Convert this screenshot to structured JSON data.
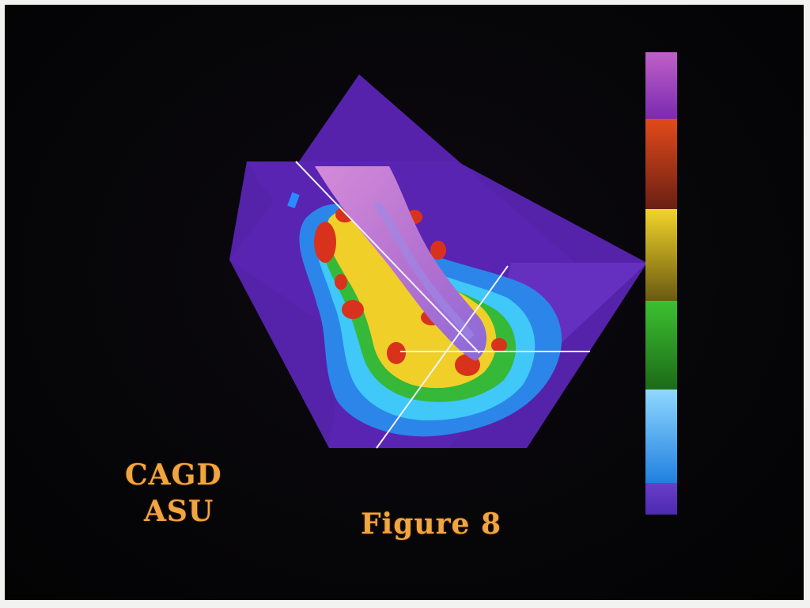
{
  "labels": {
    "lab_name": "CAGD",
    "lab_university": "ASU",
    "figure": "Figure 8"
  },
  "colors": {
    "background": "#050407",
    "plane": "#5a20b0",
    "label_orange": "#f0a640"
  },
  "colorbar": {
    "segments": [
      {
        "name": "violet",
        "top": "#c060c8",
        "bottom": "#7a2ab0"
      },
      {
        "name": "red",
        "top": "#e24a1a",
        "bottom": "#6a1f14"
      },
      {
        "name": "yellow",
        "top": "#f2d42a",
        "bottom": "#6a5a10"
      },
      {
        "name": "green",
        "top": "#3cc030",
        "bottom": "#1c6a18"
      },
      {
        "name": "cyan",
        "top": "#8fd8ff",
        "bottom": "#2080e0"
      },
      {
        "name": "blue",
        "top": "#6a3ec8",
        "bottom": "#4a2ab0"
      }
    ]
  }
}
